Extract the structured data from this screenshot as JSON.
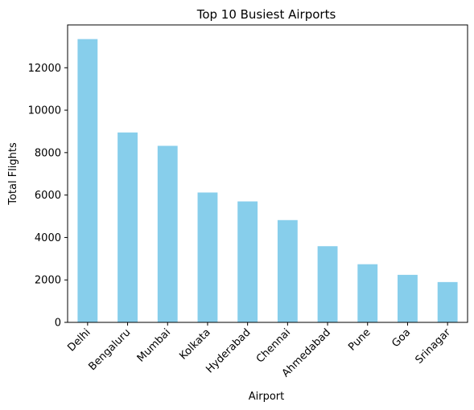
{
  "chart_data": {
    "type": "bar",
    "title": "Top 10 Busiest Airports",
    "xlabel": "Airport",
    "ylabel": "Total Flights",
    "categories": [
      "Delhi",
      "Bengaluru",
      "Mumbai",
      "Kolkata",
      "Hyderabad",
      "Chennai",
      "Ahmedabad",
      "Pune",
      "Goa",
      "Srinagar"
    ],
    "values": [
      13350,
      8950,
      8320,
      6120,
      5700,
      4820,
      3590,
      2740,
      2240,
      1900
    ],
    "ylim": [
      0,
      14018
    ],
    "yticks": [
      0,
      2000,
      4000,
      6000,
      8000,
      10000,
      12000
    ],
    "bar_color": "#87ceeb",
    "grid": false,
    "legend": "none"
  }
}
